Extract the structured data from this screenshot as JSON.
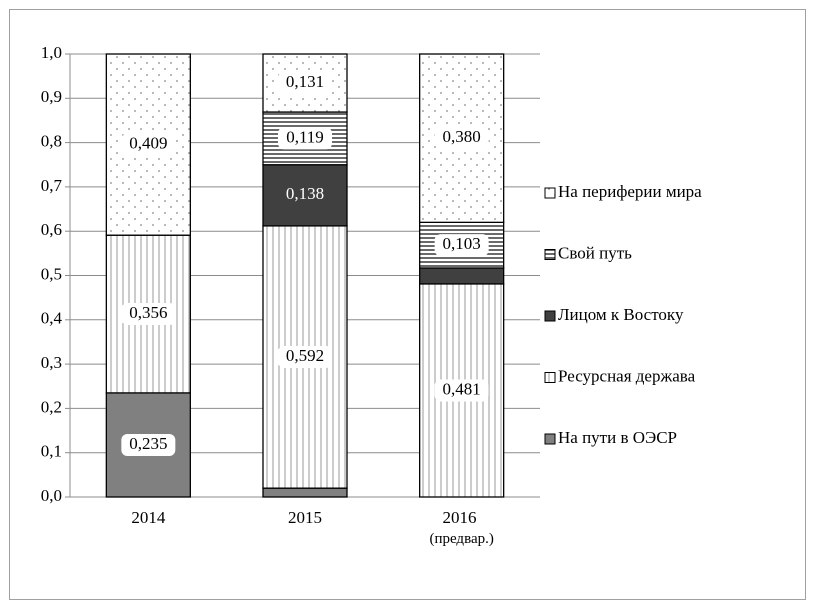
{
  "chart_data": {
    "type": "stacked_bar",
    "categories": [
      "2014",
      "2015",
      "2016 (предвар.)"
    ],
    "series": [
      {
        "name": "На пути в ОЭСР",
        "color": "#808080",
        "pattern": "solid",
        "values": [
          0.235,
          0.02,
          0
        ],
        "value_labels": [
          "0,235",
          null,
          null
        ]
      },
      {
        "name": "Ресурсная держава",
        "color": "#ffffff",
        "pattern": "vertical",
        "values": [
          0.356,
          0.592,
          0.481
        ],
        "value_labels": [
          "0,356",
          "0,592",
          "0,481"
        ]
      },
      {
        "name": "Лицом к Востоку",
        "color": "#404040",
        "pattern": "solid",
        "values": [
          0,
          0.138,
          0.036
        ],
        "value_labels": [
          null,
          "0,138",
          null
        ]
      },
      {
        "name": "Свой путь",
        "color": "#ffffff",
        "pattern": "horizontal",
        "values": [
          0,
          0.119,
          0.103
        ],
        "value_labels": [
          null,
          "0,119",
          "0,103"
        ]
      },
      {
        "name": "На периферии мира",
        "color": "#ffffff",
        "pattern": "dots",
        "values": [
          0.409,
          0.131,
          0.38
        ],
        "value_labels": [
          "0,409",
          "0,131",
          "0,380"
        ]
      }
    ],
    "ylim": [
      0,
      1
    ],
    "yticks": [
      {
        "value": 0,
        "label": "0,0"
      },
      {
        "value": 0.1,
        "label": "0,1"
      },
      {
        "value": 0.2,
        "label": "0,2"
      },
      {
        "value": 0.3,
        "label": "0,3"
      },
      {
        "value": 0.4,
        "label": "0,4"
      },
      {
        "value": 0.5,
        "label": "0,5"
      },
      {
        "value": 0.6,
        "label": "0,6"
      },
      {
        "value": 0.7,
        "label": "0,7"
      },
      {
        "value": 0.8,
        "label": "0,8"
      },
      {
        "value": 0.9,
        "label": "0,9"
      },
      {
        "value": 1,
        "label": "1,0"
      }
    ],
    "grid": true,
    "legend": "right"
  }
}
